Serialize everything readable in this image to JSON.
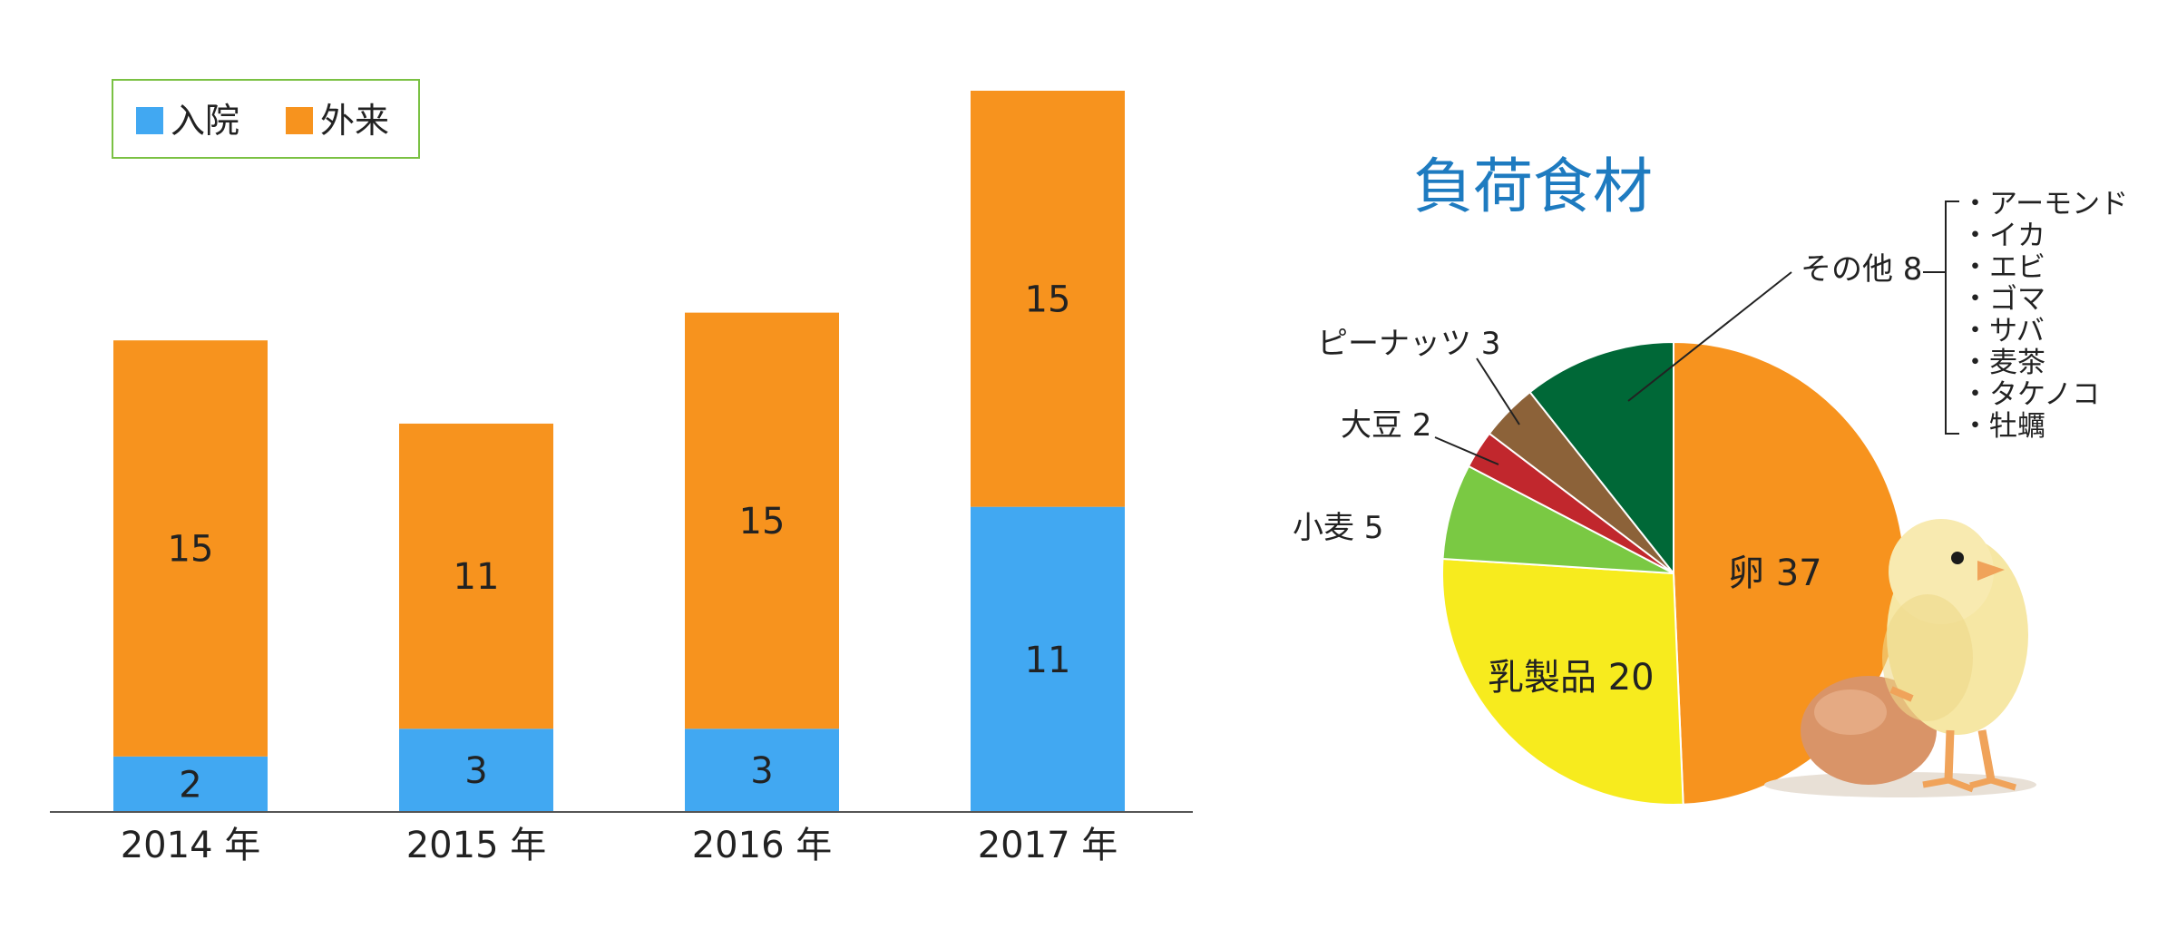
{
  "colors": {
    "inpatient": "#41a8f2",
    "outpatient": "#f7931e",
    "axis": "#333333",
    "legend_border": "#7ac143",
    "title": "#1e7bc0",
    "egg": "#f7931e",
    "dairy": "#f7eb1e",
    "wheat": "#7ac943",
    "soy": "#c1272d",
    "peanut": "#8c6239",
    "other": "#006837"
  },
  "chart_data": [
    {
      "type": "bar",
      "stacked": true,
      "categories": [
        "2014 年",
        "2015 年",
        "2016 年",
        "2017 年"
      ],
      "series": [
        {
          "name": "入院",
          "values": [
            2,
            3,
            3,
            11
          ]
        },
        {
          "name": "外来",
          "values": [
            15,
            11,
            15,
            15
          ]
        }
      ],
      "ylim": [
        0,
        26
      ],
      "legend": "top-left",
      "grid": false
    },
    {
      "type": "pie",
      "title": "負荷食材",
      "slices": [
        {
          "name": "卵",
          "value": 37,
          "label": "卵 37",
          "color_key": "egg"
        },
        {
          "name": "乳製品",
          "value": 20,
          "label": "乳製品 20",
          "color_key": "dairy"
        },
        {
          "name": "小麦",
          "value": 5,
          "label": "小麦 5",
          "color_key": "wheat"
        },
        {
          "name": "大豆",
          "value": 2,
          "label": "大豆 2",
          "color_key": "soy"
        },
        {
          "name": "ピーナッツ",
          "value": 3,
          "label": "ピーナッツ 3",
          "color_key": "peanut"
        },
        {
          "name": "その他",
          "value": 8,
          "label": "その他 8",
          "color_key": "other"
        }
      ],
      "other_breakdown": [
        "・アーモンド",
        "・イカ",
        "・エビ",
        "・ゴマ",
        "・サバ",
        "・麦茶",
        "・タケノコ",
        "・牡蠣"
      ]
    }
  ]
}
